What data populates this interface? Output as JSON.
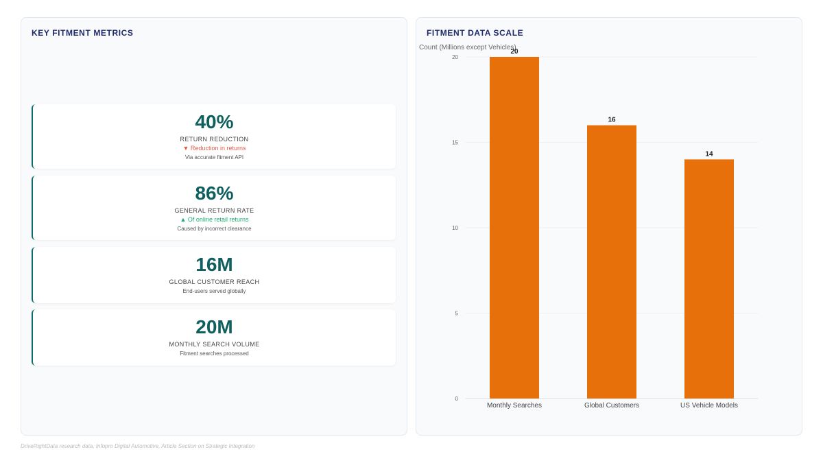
{
  "left": {
    "title": "KEY FITMENT METRICS",
    "metrics": [
      {
        "value": "40%",
        "label": "RETURN REDUCTION",
        "trend": "▼ Reduction in returns",
        "trend_dir": "down",
        "note": "Via accurate fitment API"
      },
      {
        "value": "86%",
        "label": "GENERAL RETURN RATE",
        "trend": "▲ Of online retail returns",
        "trend_dir": "up",
        "note": "Caused by incorrect clearance"
      },
      {
        "value": "16M",
        "label": "GLOBAL CUSTOMER REACH",
        "trend": "",
        "note": "End-users served globally"
      },
      {
        "value": "20M",
        "label": "MONTHLY SEARCH VOLUME",
        "trend": "",
        "note": "Fitment searches processed"
      }
    ]
  },
  "right": {
    "title": "FITMENT DATA SCALE"
  },
  "chart_data": {
    "type": "bar",
    "title": "",
    "ylabel": "Count (Millions except Vehicles)",
    "categories": [
      "Monthly Searches",
      "Global Customers",
      "US Vehicle Models"
    ],
    "values": [
      20,
      16,
      14
    ],
    "ylim": [
      0,
      20
    ],
    "yticks": [
      0,
      5,
      10,
      15,
      20
    ],
    "bar_color": "#e8700a",
    "grid": true
  },
  "footnote": "DriveRightData research data, Infopro Digital Automotive, Article Section on Strategic Integration"
}
